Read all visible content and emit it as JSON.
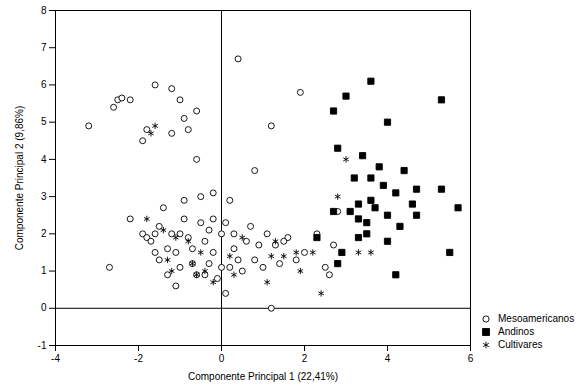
{
  "chart_data": {
    "type": "scatter",
    "x_label": "Componente Principal 1 (22,41%)",
    "y_label": "Componente Principal 2 (9,86%)",
    "xlim": [
      -4,
      6
    ],
    "xticks": [
      -4,
      -2,
      0,
      2,
      4,
      6
    ],
    "ylim": [
      -1,
      8
    ],
    "yticks": [
      -1,
      0,
      1,
      2,
      3,
      4,
      5,
      6,
      7,
      8
    ],
    "grid": false,
    "legend": "right",
    "series": [
      {
        "name": "Mesoamericanos",
        "color": "black",
        "marker": "circle-open",
        "x": [
          -3.2,
          -2.6,
          -2.5,
          -2.4,
          -2.2,
          -1.6,
          -1.2,
          -1.0,
          -1.9,
          -1.8,
          -0.9,
          -0.8,
          -1.2,
          -0.6,
          -0.6,
          0.4,
          1.2,
          1.9,
          0.8,
          -2.7,
          -2.2,
          -1.9,
          -1.8,
          -1.7,
          -1.6,
          -1.4,
          -1.3,
          -1.5,
          -1.2,
          -1.1,
          -1.0,
          -1.3,
          -1.1,
          -0.9,
          -0.8,
          -0.7,
          -0.7,
          -0.6,
          -0.5,
          -0.4,
          -0.3,
          -0.3,
          -0.2,
          -0.1,
          0.0,
          0.1,
          0.1,
          0.2,
          0.3,
          0.4,
          0.5,
          0.6,
          0.7,
          0.8,
          0.9,
          1.0,
          1.1,
          1.2,
          1.3,
          1.4,
          1.6,
          1.8,
          2.0,
          2.3,
          2.5,
          2.6,
          2.7,
          2.8,
          -0.2,
          -0.5,
          -0.9,
          0.2,
          -1.5,
          -0.2,
          1.5,
          0.3,
          -1.0,
          -0.4,
          -1.6,
          0.0
        ],
        "values": [
          4.9,
          5.4,
          5.6,
          5.65,
          5.6,
          6.0,
          5.9,
          5.6,
          4.5,
          4.8,
          5.1,
          4.8,
          4.7,
          5.3,
          4.0,
          6.7,
          4.9,
          5.8,
          3.7,
          1.1,
          2.4,
          2.0,
          1.9,
          1.8,
          2.0,
          2.7,
          1.6,
          1.3,
          2.0,
          1.5,
          1.1,
          0.9,
          0.6,
          2.4,
          1.9,
          1.6,
          1.2,
          0.9,
          2.3,
          1.8,
          1.2,
          2.1,
          1.5,
          0.8,
          1.1,
          2.3,
          0.4,
          1.1,
          2.0,
          1.3,
          1.0,
          1.8,
          2.2,
          1.3,
          1.7,
          1.1,
          2.0,
          0.0,
          1.7,
          1.2,
          1.9,
          1.3,
          1.5,
          2.0,
          1.1,
          0.9,
          1.7,
          2.6,
          3.1,
          3.0,
          2.9,
          2.9,
          2.2,
          2.4,
          1.8,
          1.6,
          2.0,
          0.9,
          1.5,
          2.0
        ]
      },
      {
        "name": "Andinos",
        "color": "black",
        "marker": "square-filled",
        "x": [
          2.7,
          3.0,
          3.6,
          4.0,
          5.3,
          2.8,
          3.2,
          3.4,
          3.6,
          3.9,
          3.8,
          4.2,
          4.4,
          4.7,
          5.3,
          5.7,
          4.6,
          4.7,
          4.3,
          4.0,
          3.7,
          3.6,
          3.3,
          3.1,
          3.3,
          3.5,
          2.7,
          2.3,
          2.9,
          3.3,
          4.0,
          4.2,
          5.5,
          2.8,
          3.5
        ],
        "values": [
          5.3,
          5.7,
          6.1,
          5.0,
          5.6,
          4.3,
          3.5,
          4.1,
          3.5,
          3.3,
          3.8,
          3.1,
          3.7,
          3.2,
          3.2,
          2.7,
          2.8,
          2.5,
          2.2,
          2.5,
          2.7,
          2.9,
          2.8,
          2.6,
          2.4,
          2.3,
          2.6,
          1.9,
          1.5,
          1.9,
          1.8,
          0.9,
          1.5,
          1.2,
          2.0
        ]
      },
      {
        "name": "Cultivares",
        "color": "black",
        "marker": "asterisk",
        "x": [
          -1.7,
          -1.6,
          -1.8,
          -1.4,
          -1.1,
          -1.3,
          -1.2,
          -0.8,
          -0.7,
          -0.6,
          -0.4,
          -0.2,
          -0.5,
          0.2,
          0.5,
          1.1,
          1.3,
          1.5,
          1.9,
          1.8,
          2.2,
          2.4,
          2.8,
          3.0,
          3.3,
          3.6,
          1.2,
          0.3
        ],
        "values": [
          4.7,
          4.9,
          2.4,
          2.1,
          1.9,
          1.3,
          1.0,
          1.8,
          1.2,
          0.9,
          1.0,
          0.7,
          1.5,
          1.4,
          1.9,
          0.7,
          1.8,
          1.4,
          1.0,
          1.5,
          1.5,
          0.4,
          3.0,
          4.0,
          1.5,
          1.5,
          1.4,
          0.9
        ]
      }
    ]
  }
}
